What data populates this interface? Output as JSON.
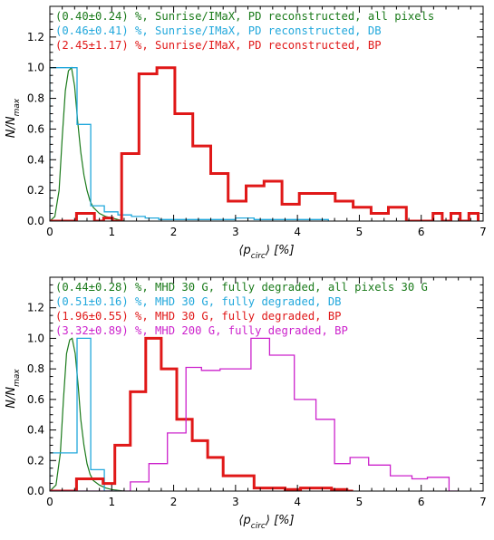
{
  "chart_data": [
    {
      "type": "histogram",
      "xlabel": "⟨p_circ⟩ [%]",
      "ylabel": "N/N_max",
      "xlim": [
        0,
        7
      ],
      "ylim": [
        0,
        1.4
      ],
      "xticks": [
        "0",
        "1",
        "2",
        "3",
        "4",
        "5",
        "6",
        "7"
      ],
      "yticks": [
        "0.0",
        "0.2",
        "0.4",
        "0.6",
        "0.8",
        "1.0",
        "1.2"
      ],
      "legend_placement": "top-left",
      "series": [
        {
          "name": "(0.40±0.24) %, Sunrise/IMaX, PD reconstructed, all pixels",
          "color": "#1a7a1a",
          "style": "curve",
          "x": [
            0.0,
            0.08,
            0.15,
            0.2,
            0.25,
            0.3,
            0.35,
            0.4,
            0.45,
            0.5,
            0.55,
            0.6,
            0.65,
            0.7,
            0.8,
            0.9,
            1.0,
            1.1,
            1.2
          ],
          "values": [
            0.0,
            0.03,
            0.2,
            0.55,
            0.85,
            0.98,
            1.0,
            0.88,
            0.65,
            0.45,
            0.3,
            0.2,
            0.13,
            0.09,
            0.05,
            0.03,
            0.02,
            0.01,
            0.0
          ]
        },
        {
          "name": "(0.46±0.41) %, Sunrise/IMaX, PD reconstructed, DB",
          "color": "#22a8dc",
          "style": "step",
          "x": [
            0.0,
            0.22,
            0.44,
            0.66,
            0.88,
            1.1,
            1.32,
            1.54,
            1.76,
            2.0,
            3.0,
            3.3,
            4.5
          ],
          "values": [
            1.0,
            1.0,
            0.63,
            0.1,
            0.06,
            0.04,
            0.03,
            0.02,
            0.01,
            0.01,
            0.02,
            0.01,
            0.0
          ]
        },
        {
          "name": "(2.45±1.17) %, Sunrise/IMaX, PD reconstructed, BP",
          "color": "#e01818",
          "style": "step",
          "x": [
            0.0,
            0.43,
            0.72,
            0.87,
            1.01,
            1.16,
            1.3,
            1.44,
            1.59,
            1.73,
            1.88,
            2.02,
            2.16,
            2.31,
            2.45,
            2.6,
            2.74,
            2.88,
            3.03,
            3.17,
            3.31,
            3.46,
            3.6,
            3.75,
            3.89,
            4.03,
            4.18,
            4.32,
            4.47,
            4.61,
            4.75,
            4.9,
            5.04,
            5.19,
            5.33,
            5.47,
            5.62,
            5.76,
            5.91,
            6.05,
            6.19,
            6.34,
            6.48,
            6.63,
            6.77,
            6.92
          ],
          "values": [
            0.0,
            0.05,
            0.0,
            0.02,
            0.0,
            0.44,
            0.44,
            0.96,
            0.96,
            1.0,
            1.0,
            0.7,
            0.7,
            0.49,
            0.49,
            0.31,
            0.31,
            0.13,
            0.13,
            0.23,
            0.23,
            0.26,
            0.26,
            0.11,
            0.11,
            0.18,
            0.18,
            0.18,
            0.18,
            0.13,
            0.13,
            0.09,
            0.09,
            0.05,
            0.05,
            0.09,
            0.09,
            0.0,
            0.0,
            0.0,
            0.05,
            0.0,
            0.05,
            0.0,
            0.05,
            0.0
          ]
        }
      ]
    },
    {
      "type": "histogram",
      "xlabel": "⟨p_circ⟩ [%]",
      "ylabel": "N/N_max",
      "xlim": [
        0,
        7
      ],
      "ylim": [
        0,
        1.4
      ],
      "xticks": [
        "0",
        "1",
        "2",
        "3",
        "4",
        "5",
        "6",
        "7"
      ],
      "yticks": [
        "0.0",
        "0.2",
        "0.4",
        "0.6",
        "0.8",
        "1.0",
        "1.2"
      ],
      "legend_placement": "top-left",
      "series": [
        {
          "name": "(0.44±0.28) %, MHD 30 G, fully degraded, all pixels 30 G",
          "color": "#1a7a1a",
          "style": "curve",
          "x": [
            0.0,
            0.1,
            0.17,
            0.22,
            0.27,
            0.32,
            0.36,
            0.41,
            0.46,
            0.5,
            0.55,
            0.6,
            0.65,
            0.7,
            0.8,
            0.9,
            1.0,
            1.1,
            1.2
          ],
          "values": [
            0.0,
            0.04,
            0.25,
            0.6,
            0.9,
            0.99,
            1.0,
            0.9,
            0.68,
            0.47,
            0.3,
            0.18,
            0.11,
            0.07,
            0.04,
            0.02,
            0.01,
            0.005,
            0.0
          ]
        },
        {
          "name": "(0.51±0.16) %, MHD 30 G, fully degraded, DB",
          "color": "#22a8dc",
          "style": "step",
          "x": [
            0.0,
            0.22,
            0.44,
            0.66,
            0.88,
            1.1
          ],
          "values": [
            0.25,
            0.25,
            1.0,
            0.14,
            0.0,
            0.0
          ]
        },
        {
          "name": "(1.96±0.55) %, MHD 30 G, fully degraded, BP",
          "color": "#e01818",
          "style": "step",
          "x": [
            0.0,
            0.43,
            0.72,
            0.86,
            1.05,
            1.3,
            1.55,
            1.8,
            2.05,
            2.3,
            2.55,
            2.8,
            3.05,
            3.3,
            3.55,
            3.8,
            4.05,
            4.3,
            4.55,
            4.8,
            4.9
          ],
          "values": [
            0.0,
            0.08,
            0.08,
            0.05,
            0.3,
            0.65,
            1.0,
            0.8,
            0.47,
            0.33,
            0.22,
            0.1,
            0.1,
            0.02,
            0.02,
            0.01,
            0.02,
            0.02,
            0.01,
            0.0,
            0.0
          ]
        },
        {
          "name": "(3.32±0.89) %, MHD 200 G, fully degraded, BP",
          "color": "#cc22cc",
          "style": "step",
          "x": [
            0.0,
            1.0,
            1.3,
            1.6,
            1.9,
            2.2,
            2.45,
            2.75,
            3.25,
            3.55,
            3.95,
            4.3,
            4.6,
            4.85,
            5.15,
            5.5,
            5.85,
            6.1,
            6.45,
            6.6
          ],
          "values": [
            0.0,
            0.0,
            0.06,
            0.18,
            0.38,
            0.81,
            0.79,
            0.8,
            1.0,
            0.89,
            0.6,
            0.47,
            0.18,
            0.22,
            0.17,
            0.1,
            0.08,
            0.09,
            0.0,
            0.0
          ]
        }
      ]
    }
  ]
}
